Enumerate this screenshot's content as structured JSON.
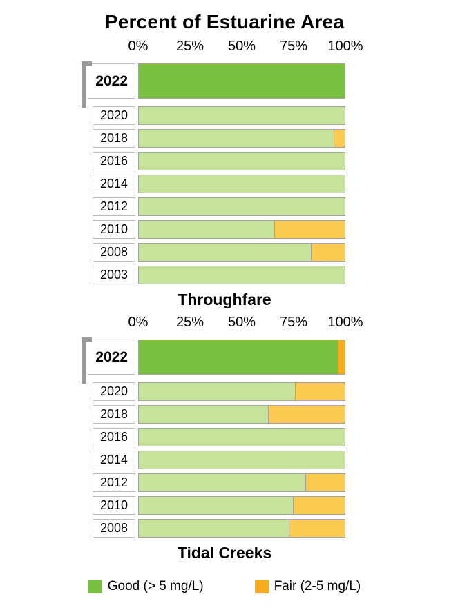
{
  "title": "Percent of Estuarine Area",
  "colors": {
    "good_current": "#79c043",
    "good_past": "#c7e29b",
    "fair_current": "#f8ac1b",
    "fair_past": "#fbca50",
    "bar_border": "#a3a3a3",
    "label_border": "#bdbdbd",
    "highlight_bracket": "#9a9a9a"
  },
  "axis": {
    "tick_labels": [
      "0%",
      "25%",
      "50%",
      "75%",
      "100%"
    ]
  },
  "legend": [
    {
      "label": "Good (> 5 mg/L)",
      "color_key": "good_current"
    },
    {
      "label": "Fair (2-5 mg/L)",
      "color_key": "fair_current"
    }
  ],
  "chart_data": [
    {
      "type": "bar",
      "orientation": "horizontal",
      "stacked": true,
      "title": "Throughfare",
      "xlim": [
        0,
        100
      ],
      "x_ticks": [
        0,
        25,
        50,
        75,
        100
      ],
      "x_tick_labels": [
        "0%",
        "25%",
        "50%",
        "75%",
        "100%"
      ],
      "categories": [
        "2022",
        "2020",
        "2018",
        "2016",
        "2014",
        "2012",
        "2010",
        "2008",
        "2003"
      ],
      "highlighted_category": "2022",
      "series": [
        {
          "name": "Good (> 5 mg/L)",
          "values": [
            100,
            100,
            95,
            100,
            100,
            100,
            66,
            84,
            100
          ]
        },
        {
          "name": "Fair (2-5 mg/L)",
          "values": [
            0,
            0,
            5,
            0,
            0,
            0,
            34,
            16,
            0
          ]
        }
      ]
    },
    {
      "type": "bar",
      "orientation": "horizontal",
      "stacked": true,
      "title": "Tidal Creeks",
      "xlim": [
        0,
        100
      ],
      "x_ticks": [
        0,
        25,
        50,
        75,
        100
      ],
      "x_tick_labels": [
        "0%",
        "25%",
        "50%",
        "75%",
        "100%"
      ],
      "categories": [
        "2022",
        "2020",
        "2018",
        "2016",
        "2014",
        "2012",
        "2010",
        "2008"
      ],
      "highlighted_category": "2022",
      "series": [
        {
          "name": "Good (> 5 mg/L)",
          "values": [
            97,
            76,
            63,
            100,
            100,
            81,
            75,
            73
          ]
        },
        {
          "name": "Fair (2-5 mg/L)",
          "values": [
            3,
            24,
            37,
            0,
            0,
            19,
            25,
            27
          ]
        }
      ]
    }
  ]
}
